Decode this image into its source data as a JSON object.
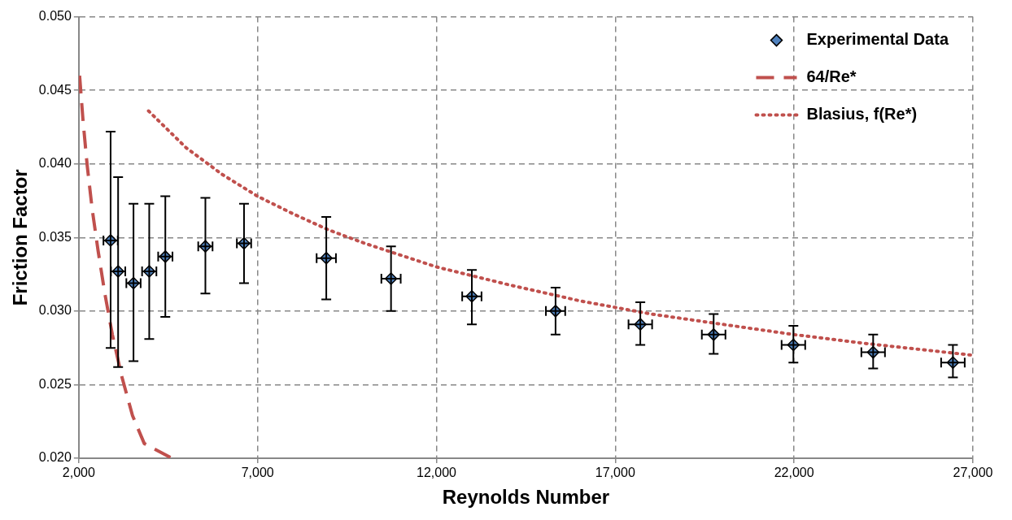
{
  "chart_data": {
    "type": "scatter",
    "xlabel": "Reynolds Number",
    "ylabel": "Friction Factor",
    "xlim": [
      2000,
      27000
    ],
    "xticks": [
      {
        "value": 2000,
        "label": "2,000"
      },
      {
        "value": 7000,
        "label": "7,000"
      },
      {
        "value": 12000,
        "label": "12,000"
      },
      {
        "value": 17000,
        "label": "17,000"
      },
      {
        "value": 22000,
        "label": "22,000"
      },
      {
        "value": 27000,
        "label": "27,000"
      }
    ],
    "ylim": [
      0.02,
      0.05
    ],
    "yticks": [
      {
        "value": 0.02,
        "label": "0.020"
      },
      {
        "value": 0.025,
        "label": "0.025"
      },
      {
        "value": 0.03,
        "label": "0.030"
      },
      {
        "value": 0.035,
        "label": "0.035"
      },
      {
        "value": 0.04,
        "label": "0.040"
      },
      {
        "value": 0.045,
        "label": "0.045"
      },
      {
        "value": 0.05,
        "label": "0.050"
      }
    ],
    "grid": true,
    "legend": "top right",
    "series": [
      {
        "name": "Experimental Data",
        "marker": "diamond",
        "color": "#4f81bd",
        "x": [
          2890,
          3100,
          3530,
          3970,
          4420,
          5540,
          6620,
          8920,
          10730,
          12990,
          15330,
          17700,
          19750,
          21980,
          24210,
          26440
        ],
        "values": [
          0.0348,
          0.0327,
          0.0319,
          0.0327,
          0.0337,
          0.0344,
          0.0346,
          0.0336,
          0.0322,
          0.031,
          0.03,
          0.0291,
          0.0284,
          0.0277,
          0.0272,
          0.0265
        ],
        "errors": [
          [
            0.0275,
            0.0422
          ],
          [
            0.0262,
            0.0391
          ],
          [
            0.0266,
            0.0373
          ],
          [
            0.0281,
            0.0373
          ],
          [
            0.0296,
            0.0378
          ],
          [
            0.0312,
            0.0377
          ],
          [
            0.0319,
            0.0373
          ],
          [
            0.0308,
            0.0364
          ],
          [
            0.03,
            0.0344
          ],
          [
            0.0291,
            0.0328
          ],
          [
            0.0284,
            0.0316
          ],
          [
            0.0277,
            0.0306
          ],
          [
            0.0271,
            0.0298
          ],
          [
            0.0265,
            0.029
          ],
          [
            0.0261,
            0.0284
          ],
          [
            0.0255,
            0.0277
          ]
        ],
        "xerrors": [
          200,
          200,
          200,
          200,
          200,
          200,
          200,
          270,
          270,
          270,
          270,
          330,
          330,
          330,
          330,
          330
        ]
      },
      {
        "name": "64/Re*",
        "type": "line",
        "marker": "none",
        "line_style": "dashed",
        "color": "#c0504d",
        "x": [
          2023,
          2117,
          2235,
          2376,
          2540,
          2728,
          2939,
          3197,
          3502,
          3831,
          4606
        ],
        "values": [
          0.046,
          0.043,
          0.0399,
          0.0369,
          0.0341,
          0.0312,
          0.0284,
          0.0256,
          0.0229,
          0.021,
          0.02
        ]
      },
      {
        "name": "Blasius, f(Re*)",
        "type": "line",
        "marker": "none",
        "line_style": "dotted",
        "color": "#c0504d",
        "x": [
          3950,
          5000,
          6000,
          7000,
          8000,
          9000,
          10000,
          12000,
          14000,
          16000,
          18000,
          20000,
          22000,
          24000,
          27000
        ],
        "values": [
          0.0436,
          0.0411,
          0.0393,
          0.0378,
          0.0366,
          0.0355,
          0.0346,
          0.033,
          0.0318,
          0.0307,
          0.0298,
          0.0291,
          0.0284,
          0.0278,
          0.027
        ]
      }
    ]
  }
}
